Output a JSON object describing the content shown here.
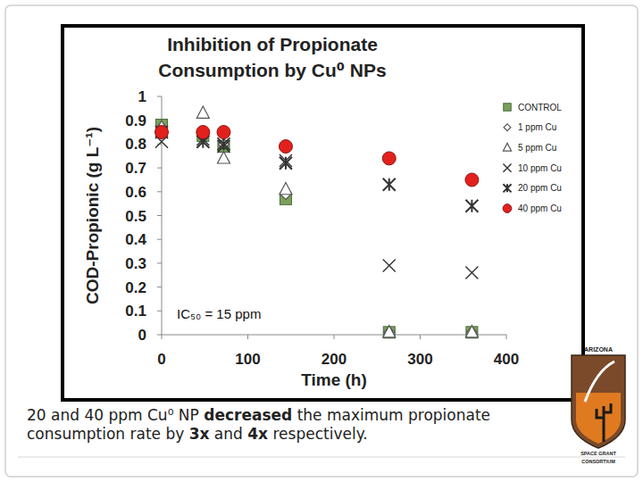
{
  "chart_data": {
    "type": "scatter",
    "title": "Inhibition of Propionate Consumption by Cu⁰ NPs",
    "x_label": "Time (h)",
    "y_label": "COD-Propionic (g L⁻¹)",
    "x": [
      0,
      48,
      72,
      144,
      264,
      360
    ],
    "series": [
      {
        "name": "CONTROL",
        "color": "#7ba05b",
        "marker": "square",
        "values": [
          0.88,
          0.835,
          0.79,
          0.57,
          0.01,
          0.01
        ]
      },
      {
        "name": "1 ppm Cu",
        "color": "#555555",
        "marker": "diamond",
        "values": [
          0.87,
          0.84,
          0.8,
          0.59,
          0.01,
          0.01
        ]
      },
      {
        "name": "5 ppm Cu",
        "color": "#555555",
        "marker": "triangle",
        "values": [
          0.87,
          0.93,
          0.74,
          0.61,
          0.01,
          0.01
        ]
      },
      {
        "name": "10 ppm Cu",
        "color": "#333333",
        "marker": "x",
        "values": [
          0.81,
          0.82,
          0.79,
          0.73,
          0.29,
          0.26
        ]
      },
      {
        "name": "20 ppm Cu",
        "color": "#333333",
        "marker": "asterisk",
        "values": [
          0.85,
          0.81,
          0.8,
          0.72,
          0.63,
          0.54
        ]
      },
      {
        "name": "40 ppm Cu",
        "color": "#e3211c",
        "marker": "circle",
        "values": [
          0.85,
          0.85,
          0.85,
          0.79,
          0.74,
          0.65
        ]
      }
    ],
    "xlim": [
      0,
      400
    ],
    "xticks": [
      0,
      100,
      200,
      300,
      400
    ],
    "ylim": [
      0,
      1
    ],
    "yticks": [
      0,
      0.1,
      0.2,
      0.3,
      0.4,
      0.5,
      0.6,
      0.7,
      0.8,
      0.9,
      1
    ],
    "grid": false,
    "legend": "right",
    "annotations": [
      "IC₅₀ = 15 ppm"
    ]
  },
  "caption": [
    [
      {
        "text": "20 and 40 ppm Cu⁰ NP ",
        "bold": false
      },
      {
        "text": "decreased",
        "bold": true
      },
      {
        "text": " the maximum propionate",
        "bold": false
      }
    ],
    [
      {
        "text": "consumption rate by ",
        "bold": false
      },
      {
        "text": "3x",
        "bold": true
      },
      {
        "text": " and ",
        "bold": false
      },
      {
        "text": "4x",
        "bold": true
      },
      {
        "text": " respectively.",
        "bold": false
      }
    ]
  ],
  "logo": {
    "lines": [
      "ARIZONA",
      "SPACE GRANT",
      "CONSORTIUM"
    ]
  }
}
